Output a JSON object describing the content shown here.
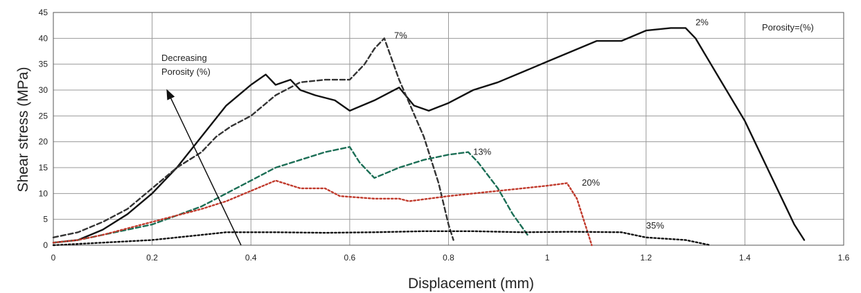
{
  "chart_data": {
    "type": "line",
    "xlabel": "Displacement (mm)",
    "ylabel": "Shear stress (MPa)",
    "xlim": [
      0,
      1.6
    ],
    "ylim": [
      0,
      45
    ],
    "xticks": [
      0,
      0.2,
      0.4,
      0.6,
      0.8,
      1,
      1.2,
      1.4,
      1.6
    ],
    "yticks": [
      0,
      5,
      10,
      15,
      20,
      25,
      30,
      35,
      40,
      45
    ],
    "xtick_labels": [
      "0",
      "0.2",
      "0.4",
      "0.6",
      "0.8",
      "1",
      "1.2",
      "1.4",
      "1.6"
    ],
    "ytick_labels": [
      "0",
      "5",
      "10",
      "15",
      "20",
      "25",
      "30",
      "35",
      "40",
      "45"
    ],
    "grid": true,
    "legend_title": "Porosity=(%)",
    "annotation": {
      "text_lines": [
        "Decreasing",
        "Porosity (%)"
      ],
      "arrow_from": [
        0.38,
        0
      ],
      "arrow_to": [
        0.23,
        30
      ]
    },
    "series": [
      {
        "name": "2%",
        "color": "#111111",
        "style": "solid",
        "label_at": [
          1.3,
          42.5
        ],
        "points": [
          [
            0,
            0.5
          ],
          [
            0.05,
            1
          ],
          [
            0.1,
            3
          ],
          [
            0.15,
            6
          ],
          [
            0.2,
            10
          ],
          [
            0.25,
            15
          ],
          [
            0.3,
            21
          ],
          [
            0.35,
            27
          ],
          [
            0.4,
            31
          ],
          [
            0.43,
            33
          ],
          [
            0.45,
            31
          ],
          [
            0.48,
            32
          ],
          [
            0.5,
            30
          ],
          [
            0.53,
            29
          ],
          [
            0.57,
            28
          ],
          [
            0.6,
            26
          ],
          [
            0.65,
            28
          ],
          [
            0.7,
            30.5
          ],
          [
            0.73,
            27
          ],
          [
            0.76,
            26
          ],
          [
            0.8,
            27.5
          ],
          [
            0.85,
            30
          ],
          [
            0.9,
            31.5
          ],
          [
            0.95,
            33.5
          ],
          [
            1.0,
            35.5
          ],
          [
            1.05,
            37.5
          ],
          [
            1.1,
            39.5
          ],
          [
            1.15,
            39.5
          ],
          [
            1.2,
            41.5
          ],
          [
            1.25,
            42
          ],
          [
            1.28,
            42
          ],
          [
            1.3,
            40
          ],
          [
            1.35,
            32
          ],
          [
            1.4,
            24
          ],
          [
            1.45,
            14
          ],
          [
            1.5,
            4
          ],
          [
            1.52,
            1
          ]
        ]
      },
      {
        "name": "7%",
        "color": "#333333",
        "style": "dashed",
        "label_at": [
          0.69,
          40
        ],
        "points": [
          [
            0,
            1.5
          ],
          [
            0.05,
            2.5
          ],
          [
            0.1,
            4.5
          ],
          [
            0.15,
            7
          ],
          [
            0.2,
            11
          ],
          [
            0.25,
            15
          ],
          [
            0.3,
            18
          ],
          [
            0.33,
            21
          ],
          [
            0.36,
            23
          ],
          [
            0.4,
            25
          ],
          [
            0.45,
            29
          ],
          [
            0.5,
            31.5
          ],
          [
            0.55,
            32
          ],
          [
            0.6,
            32
          ],
          [
            0.63,
            35
          ],
          [
            0.65,
            38
          ],
          [
            0.67,
            40
          ],
          [
            0.7,
            32
          ],
          [
            0.75,
            21
          ],
          [
            0.78,
            12
          ],
          [
            0.8,
            4
          ],
          [
            0.81,
            1
          ]
        ]
      },
      {
        "name": "13%",
        "color": "#1b6e55",
        "style": "dashed",
        "label_at": [
          0.85,
          17.5
        ],
        "points": [
          [
            0,
            0.5
          ],
          [
            0.05,
            1
          ],
          [
            0.1,
            2
          ],
          [
            0.2,
            4
          ],
          [
            0.3,
            7.5
          ],
          [
            0.35,
            10
          ],
          [
            0.4,
            12.5
          ],
          [
            0.45,
            15
          ],
          [
            0.5,
            16.5
          ],
          [
            0.55,
            18
          ],
          [
            0.6,
            19
          ],
          [
            0.62,
            16
          ],
          [
            0.65,
            13
          ],
          [
            0.7,
            15
          ],
          [
            0.75,
            16.5
          ],
          [
            0.8,
            17.5
          ],
          [
            0.84,
            18
          ],
          [
            0.86,
            16
          ],
          [
            0.9,
            11
          ],
          [
            0.93,
            6
          ],
          [
            0.96,
            2
          ]
        ]
      },
      {
        "name": "20%",
        "color": "#c0392b",
        "style": "dotted",
        "label_at": [
          1.07,
          11.5
        ],
        "points": [
          [
            0,
            0.5
          ],
          [
            0.05,
            1
          ],
          [
            0.1,
            2
          ],
          [
            0.2,
            4.5
          ],
          [
            0.3,
            7
          ],
          [
            0.35,
            8.5
          ],
          [
            0.4,
            10.5
          ],
          [
            0.45,
            12.5
          ],
          [
            0.5,
            11
          ],
          [
            0.55,
            11
          ],
          [
            0.58,
            9.5
          ],
          [
            0.65,
            9
          ],
          [
            0.7,
            9
          ],
          [
            0.72,
            8.5
          ],
          [
            0.8,
            9.5
          ],
          [
            0.85,
            10
          ],
          [
            0.95,
            11
          ],
          [
            1.0,
            11.5
          ],
          [
            1.04,
            12
          ],
          [
            1.06,
            9
          ],
          [
            1.08,
            3
          ],
          [
            1.09,
            0
          ]
        ]
      },
      {
        "name": "35%",
        "color": "#111111",
        "style": "dotted",
        "label_at": [
          1.2,
          3.2
        ],
        "points": [
          [
            0,
            0
          ],
          [
            0.1,
            0.5
          ],
          [
            0.2,
            1
          ],
          [
            0.3,
            2
          ],
          [
            0.35,
            2.5
          ],
          [
            0.45,
            2.5
          ],
          [
            0.55,
            2.4
          ],
          [
            0.65,
            2.5
          ],
          [
            0.75,
            2.7
          ],
          [
            0.85,
            2.7
          ],
          [
            0.95,
            2.5
          ],
          [
            1.05,
            2.6
          ],
          [
            1.15,
            2.5
          ],
          [
            1.2,
            1.5
          ],
          [
            1.28,
            1
          ],
          [
            1.33,
            0
          ]
        ]
      }
    ]
  }
}
